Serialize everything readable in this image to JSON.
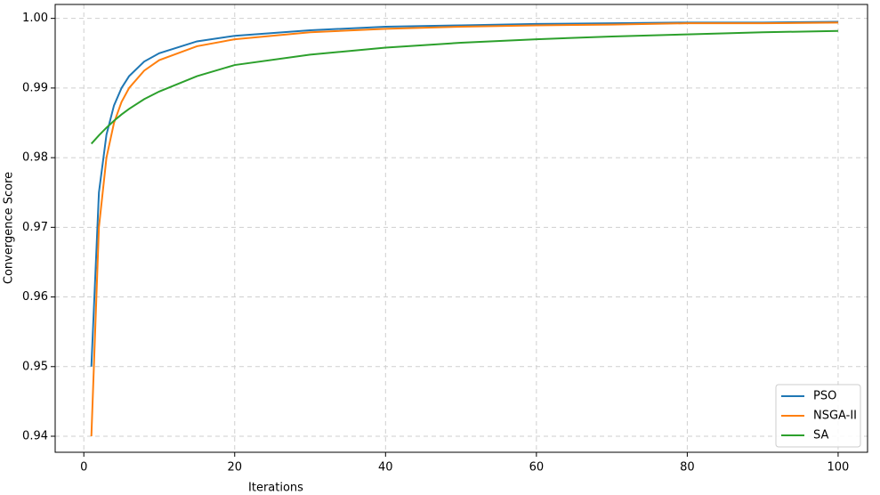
{
  "chart_data": {
    "type": "line",
    "xlabel": "Iterations",
    "ylabel": "Convergence Score",
    "x": [
      1,
      2,
      3,
      4,
      5,
      6,
      8,
      10,
      15,
      20,
      30,
      40,
      50,
      60,
      70,
      80,
      90,
      100
    ],
    "series": [
      {
        "name": "PSO",
        "color": "#1f77b4",
        "values": [
          0.95,
          0.975,
          0.9833,
          0.9875,
          0.99,
          0.9917,
          0.9938,
          0.995,
          0.9967,
          0.9975,
          0.9983,
          0.9988,
          0.999,
          0.9992,
          0.9993,
          0.9994,
          0.9994,
          0.9995
        ]
      },
      {
        "name": "NSGA-II",
        "color": "#ff7f0e",
        "values": [
          0.94,
          0.97,
          0.98,
          0.985,
          0.988,
          0.99,
          0.9925,
          0.994,
          0.996,
          0.997,
          0.998,
          0.9985,
          0.9988,
          0.999,
          0.9991,
          0.9993,
          0.9993,
          0.9994
        ]
      },
      {
        "name": "SA",
        "color": "#2ca02c",
        "values": [
          0.982,
          0.9832,
          0.9843,
          0.9853,
          0.9862,
          0.987,
          0.9884,
          0.9895,
          0.9917,
          0.9933,
          0.9948,
          0.9958,
          0.9965,
          0.997,
          0.9974,
          0.9977,
          0.998,
          0.9982
        ]
      }
    ],
    "xlim": [
      -3.8,
      103.9
    ],
    "xticks": [
      0,
      20,
      40,
      60,
      80,
      100
    ],
    "ylim": [
      0.9377,
      1.002
    ],
    "yticks": [
      0.94,
      0.95,
      0.96,
      0.97,
      0.98,
      0.99,
      {
        "value": 1.0,
        "label": "1.00"
      }
    ],
    "grid": true,
    "legend": "lower right"
  }
}
